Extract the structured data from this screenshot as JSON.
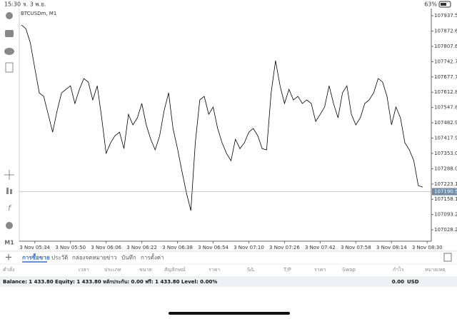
{
  "status_bar": {
    "time": "15:30",
    "date": "จ. 3 พ.ย.",
    "battery": "63%"
  },
  "toolbar": {
    "timeframe": "M1"
  },
  "chart_data": {
    "type": "line",
    "title": "BTCUSDm, M1",
    "color": "#000000",
    "x": [
      "3 Nov 05:28",
      "3 Nov 05:30",
      "3 Nov 05:32",
      "3 Nov 05:34",
      "3 Nov 05:36",
      "3 Nov 05:38",
      "3 Nov 05:40",
      "3 Nov 05:42",
      "3 Nov 05:44",
      "3 Nov 05:46",
      "3 Nov 05:48",
      "3 Nov 05:50",
      "3 Nov 05:52",
      "3 Nov 05:54",
      "3 Nov 05:56",
      "3 Nov 05:58",
      "3 Nov 06:00",
      "3 Nov 06:02",
      "3 Nov 06:04",
      "3 Nov 06:06",
      "3 Nov 06:08",
      "3 Nov 06:10",
      "3 Nov 06:12",
      "3 Nov 06:14",
      "3 Nov 06:16",
      "3 Nov 06:18",
      "3 Nov 06:20",
      "3 Nov 06:22",
      "3 Nov 06:24",
      "3 Nov 06:26",
      "3 Nov 06:28",
      "3 Nov 06:30",
      "3 Nov 06:32",
      "3 Nov 06:34",
      "3 Nov 06:36",
      "3 Nov 06:38",
      "3 Nov 06:40",
      "3 Nov 06:42",
      "3 Nov 06:44",
      "3 Nov 06:46",
      "3 Nov 06:48",
      "3 Nov 06:50",
      "3 Nov 06:52",
      "3 Nov 06:54",
      "3 Nov 06:56",
      "3 Nov 06:58",
      "3 Nov 07:00",
      "3 Nov 07:02",
      "3 Nov 07:04",
      "3 Nov 07:06",
      "3 Nov 07:08",
      "3 Nov 07:10",
      "3 Nov 07:12",
      "3 Nov 07:14",
      "3 Nov 07:16",
      "3 Nov 07:18",
      "3 Nov 07:20",
      "3 Nov 07:22",
      "3 Nov 07:24",
      "3 Nov 07:26",
      "3 Nov 07:28",
      "3 Nov 07:30",
      "3 Nov 07:32",
      "3 Nov 07:34",
      "3 Nov 07:36",
      "3 Nov 07:38",
      "3 Nov 07:40",
      "3 Nov 07:42",
      "3 Nov 07:44",
      "3 Nov 07:46",
      "3 Nov 07:48",
      "3 Nov 07:50",
      "3 Nov 07:52",
      "3 Nov 07:54",
      "3 Nov 07:56",
      "3 Nov 07:58",
      "3 Nov 08:00",
      "3 Nov 08:02",
      "3 Nov 08:04",
      "3 Nov 08:06",
      "3 Nov 08:08",
      "3 Nov 08:10",
      "3 Nov 08:12",
      "3 Nov 08:14",
      "3 Nov 08:16",
      "3 Nov 08:18",
      "3 Nov 08:20",
      "3 Nov 08:22",
      "3 Nov 08:24",
      "3 Nov 08:26",
      "3 Nov 08:28"
    ],
    "values": [
      107898,
      107883,
      107822,
      107716,
      107610,
      107595,
      107519,
      107443,
      107534,
      107610,
      107625,
      107640,
      107565,
      107625,
      107671,
      107656,
      107580,
      107640,
      107504,
      107353,
      107398,
      107428,
      107443,
      107373,
      107519,
      107474,
      107504,
      107565,
      107474,
      107413,
      107368,
      107428,
      107534,
      107610,
      107459,
      107373,
      107277,
      107186,
      107110,
      107398,
      107580,
      107595,
      107519,
      107550,
      107459,
      107398,
      107353,
      107322,
      107413,
      107373,
      107398,
      107443,
      107459,
      107428,
      107373,
      107368,
      107610,
      107747,
      107640,
      107565,
      107625,
      107580,
      107595,
      107565,
      107580,
      107565,
      107489,
      107519,
      107550,
      107640,
      107565,
      107504,
      107610,
      107640,
      107519,
      107474,
      107504,
      107565,
      107580,
      107610,
      107671,
      107656,
      107595,
      107474,
      107550,
      107504,
      107398,
      107368,
      107322,
      107216,
      107210
    ],
    "xticks": [
      "3 Nov 05:34",
      "3 Nov 05:50",
      "3 Nov 06:06",
      "3 Nov 06:22",
      "3 Nov 06:38",
      "3 Nov 06:54",
      "3 Nov 07:10",
      "3 Nov 07:26",
      "3 Nov 07:42",
      "3 Nov 07:58",
      "3 Nov 08:14",
      "3 Nov 08:30"
    ],
    "ylim": [
      106983,
      107959
    ],
    "yticks": [
      107937.55,
      {
        "value": 107872.6,
        "label": "107872.60"
      },
      107807.65,
      {
        "value": 107742.7,
        "label": "107742.70"
      },
      107677.75,
      {
        "value": 107612.8,
        "label": "107612.80"
      },
      107547.85,
      {
        "value": 107482.9,
        "label": "107482.90"
      },
      107417.95,
      {
        "value": 107353,
        "label": "107353.00"
      },
      107288.05,
      {
        "value": 107223.1,
        "label": "107223.10"
      },
      107158.15,
      {
        "value": 107093.2,
        "label": "107093.20"
      },
      107028.25
    ],
    "price_line": 107190.52
  },
  "tabs": [
    "การซื้อขาย",
    "ประวัติ",
    "กล่องจดหมาย",
    "ข่าว",
    "บันทึก",
    "การตั้งค่า"
  ],
  "table": {
    "headers": [
      "คำสั่ง",
      "เวลา",
      "ประเภท",
      "ขนาด",
      "สัญลักษณ์",
      "ราคา",
      "S/L",
      "T/P",
      "ราคา",
      "Swap",
      "กำไร",
      "หมายเหตุ"
    ]
  },
  "summary": {
    "text": "Balance: 1 433.80 Equity: 1 433.80 หลักประกัน: 0.00 ฟรี: 1 433.80 Level: 0.00%",
    "profit": "0.00",
    "currency": "USD"
  }
}
